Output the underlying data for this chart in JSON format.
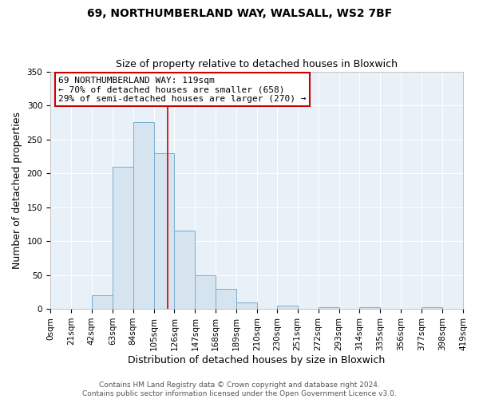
{
  "title": "69, NORTHUMBERLAND WAY, WALSALL, WS2 7BF",
  "subtitle": "Size of property relative to detached houses in Bloxwich",
  "xlabel": "Distribution of detached houses by size in Bloxwich",
  "ylabel": "Number of detached properties",
  "bin_edges": [
    0,
    21,
    42,
    63,
    84,
    105,
    126,
    147,
    168,
    189,
    210,
    230,
    251,
    272,
    293,
    314,
    335,
    356,
    377,
    398,
    419
  ],
  "bin_counts": [
    0,
    0,
    20,
    210,
    275,
    230,
    115,
    50,
    30,
    10,
    0,
    5,
    0,
    3,
    0,
    2,
    0,
    0,
    3,
    0
  ],
  "bar_color": "#d6e4f0",
  "bar_edge_color": "#7aadcf",
  "vline_x": 119,
  "vline_color": "#cc0000",
  "ylim": [
    0,
    350
  ],
  "yticks": [
    0,
    50,
    100,
    150,
    200,
    250,
    300,
    350
  ],
  "xtick_labels": [
    "0sqm",
    "21sqm",
    "42sqm",
    "63sqm",
    "84sqm",
    "105sqm",
    "126sqm",
    "147sqm",
    "168sqm",
    "189sqm",
    "210sqm",
    "230sqm",
    "251sqm",
    "272sqm",
    "293sqm",
    "314sqm",
    "335sqm",
    "356sqm",
    "377sqm",
    "398sqm",
    "419sqm"
  ],
  "annotation_title": "69 NORTHUMBERLAND WAY: 119sqm",
  "annotation_line1": "← 70% of detached houses are smaller (658)",
  "annotation_line2": "29% of semi-detached houses are larger (270) →",
  "annotation_box_facecolor": "#ffffff",
  "annotation_box_edgecolor": "#cc0000",
  "footer1": "Contains HM Land Registry data © Crown copyright and database right 2024.",
  "footer2": "Contains public sector information licensed under the Open Government Licence v3.0.",
  "fig_facecolor": "#ffffff",
  "ax_facecolor": "#e8f0f8",
  "grid_color": "#ffffff",
  "title_fontsize": 10,
  "subtitle_fontsize": 9,
  "axis_label_fontsize": 9,
  "tick_fontsize": 7.5,
  "annotation_fontsize": 8,
  "footer_fontsize": 6.5
}
